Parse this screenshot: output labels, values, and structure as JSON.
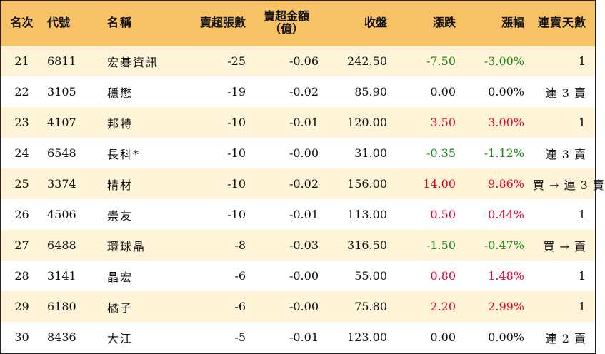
{
  "headers": {
    "rank": "名次",
    "code": "代號",
    "name": "名稱",
    "net_sell_lots": "賣超張數",
    "net_sell_amount_line1": "賣超金額",
    "net_sell_amount_line2": "（億）",
    "close": "收盤",
    "change": "漲跌",
    "change_pct": "漲幅",
    "consecutive_days": "連賣天數"
  },
  "colors": {
    "header_bg": "#f7c266",
    "odd_row_bg": "#fff3d8",
    "up": "#e8002a",
    "down": "#1a8a1a"
  },
  "rows": [
    {
      "rank": "21",
      "code": "6811",
      "name": "宏碁資訊",
      "lots": "-25",
      "amount": "-0.06",
      "close": "242.50",
      "change": "-7.50",
      "pct": "-3.00%",
      "trend": "down",
      "days": "1"
    },
    {
      "rank": "22",
      "code": "3105",
      "name": "穩懋",
      "lots": "-19",
      "amount": "-0.02",
      "close": "85.90",
      "change": "0.00",
      "pct": "0.00%",
      "trend": "flat",
      "days": "連 3 賣"
    },
    {
      "rank": "23",
      "code": "4107",
      "name": "邦特",
      "lots": "-10",
      "amount": "-0.01",
      "close": "120.00",
      "change": "3.50",
      "pct": "3.00%",
      "trend": "up",
      "days": "1"
    },
    {
      "rank": "24",
      "code": "6548",
      "name": "長科*",
      "lots": "-10",
      "amount": "-0.00",
      "close": "31.00",
      "change": "-0.35",
      "pct": "-1.12%",
      "trend": "down",
      "days": "連 3 賣"
    },
    {
      "rank": "25",
      "code": "3374",
      "name": "精材",
      "lots": "-10",
      "amount": "-0.02",
      "close": "156.00",
      "change": "14.00",
      "pct": "9.86%",
      "trend": "up",
      "days": "買 → 連 3 賣"
    },
    {
      "rank": "26",
      "code": "4506",
      "name": "崇友",
      "lots": "-10",
      "amount": "-0.01",
      "close": "113.00",
      "change": "0.50",
      "pct": "0.44%",
      "trend": "up",
      "days": "1"
    },
    {
      "rank": "27",
      "code": "6488",
      "name": "環球晶",
      "lots": "-8",
      "amount": "-0.03",
      "close": "316.50",
      "change": "-1.50",
      "pct": "-0.47%",
      "trend": "down",
      "days": "買 → 賣"
    },
    {
      "rank": "28",
      "code": "3141",
      "name": "晶宏",
      "lots": "-6",
      "amount": "-0.00",
      "close": "55.00",
      "change": "0.80",
      "pct": "1.48%",
      "trend": "up",
      "days": "1"
    },
    {
      "rank": "29",
      "code": "6180",
      "name": "橘子",
      "lots": "-6",
      "amount": "-0.00",
      "close": "75.80",
      "change": "2.20",
      "pct": "2.99%",
      "trend": "up",
      "days": "1"
    },
    {
      "rank": "30",
      "code": "8436",
      "name": "大江",
      "lots": "-5",
      "amount": "-0.01",
      "close": "123.00",
      "change": "0.00",
      "pct": "0.00%",
      "trend": "flat",
      "days": "連 2 賣"
    }
  ]
}
